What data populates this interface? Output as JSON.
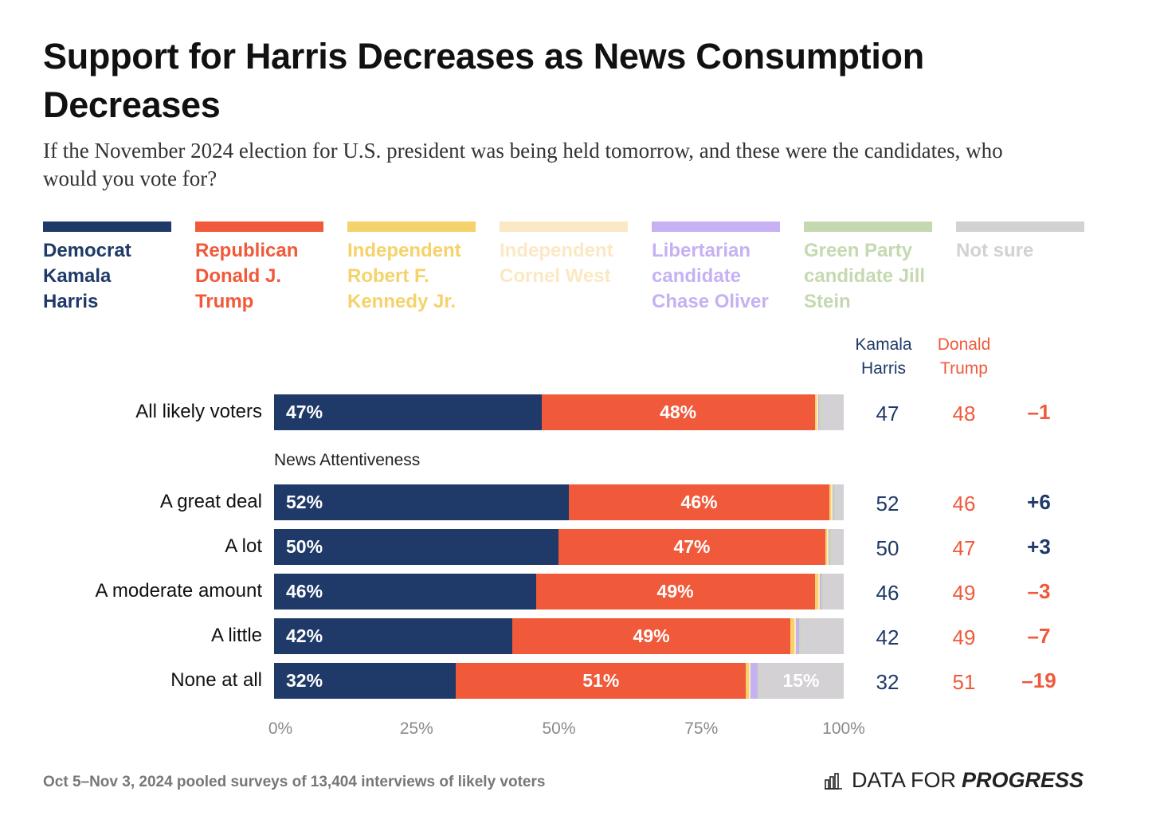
{
  "title": "Support for Harris Decreases as News Consumption Decreases",
  "subtitle": "If the November 2024 election for U.S. president was being held tomorrow, and these were the candidates, who would you vote for?",
  "legend": [
    {
      "label": "Democrat Kamala Harris",
      "color": "#1f3a68"
    },
    {
      "label": "Republican Donald J. Trump",
      "color": "#f0593a"
    },
    {
      "label": "Independent Robert F. Kennedy Jr.",
      "color": "#f5d26b"
    },
    {
      "label": "Independent Cornel West",
      "color": "#fbe8c4"
    },
    {
      "label": "Libertarian candidate Chase Oliver",
      "color": "#c6b1f2"
    },
    {
      "label": "Green Party candidate Jill Stein",
      "color": "#c5d9b1"
    },
    {
      "label": "Not sure",
      "color": "#d3d1d3"
    }
  ],
  "columns": {
    "harris": "Kamala Harris",
    "trump": "Donald Trump"
  },
  "section_label": "News Attentiveness",
  "footer": "Oct 5–Nov 3, 2024 pooled surveys of 13,404 interviews of likely voters",
  "brand": {
    "part1": "DATA FOR",
    "part2": "PROGRESS",
    "icon": "bar-chart-icon"
  },
  "chart_data": {
    "type": "bar",
    "orientation": "horizontal",
    "stacked": true,
    "categories": [
      "All likely voters",
      "A great deal",
      "A lot",
      "A moderate amount",
      "A little",
      "None at all"
    ],
    "series": [
      {
        "name": "Democrat Kamala Harris",
        "values": [
          47,
          52,
          50,
          46,
          42,
          32
        ]
      },
      {
        "name": "Republican Donald J. Trump",
        "values": [
          48,
          46,
          47,
          49,
          49,
          51
        ]
      },
      {
        "name": "Independent Robert F. Kennedy Jr.",
        "values": [
          0.4,
          0.3,
          0.3,
          0.6,
          0.7,
          0.5
        ]
      },
      {
        "name": "Independent Cornel West",
        "values": [
          0.2,
          0.2,
          0.2,
          0.3,
          0.3,
          0.3
        ]
      },
      {
        "name": "Libertarian candidate Chase Oliver",
        "values": [
          0.2,
          0.2,
          0.2,
          0.3,
          0.5,
          1.2
        ]
      },
      {
        "name": "Green Party candidate Jill Stein",
        "values": [
          0.3,
          0.2,
          0.3,
          0.3,
          0.3,
          0.2
        ]
      },
      {
        "name": "Not sure",
        "values": [
          4.0,
          1.6,
          2.2,
          3.6,
          7.6,
          15.0
        ]
      }
    ],
    "bar_labels": [
      [
        "47%",
        "48%",
        ""
      ],
      [
        "52%",
        "46%",
        ""
      ],
      [
        "50%",
        "47%",
        ""
      ],
      [
        "46%",
        "49%",
        ""
      ],
      [
        "42%",
        "49%",
        ""
      ],
      [
        "32%",
        "51%",
        "15%"
      ]
    ],
    "harris": [
      "47",
      "52",
      "50",
      "46",
      "42",
      "32"
    ],
    "trump": [
      "48",
      "46",
      "47",
      "49",
      "49",
      "51"
    ],
    "margin": [
      "–1",
      "+6",
      "+3",
      "–3",
      "–7",
      "–19"
    ],
    "xticks": [
      "0%",
      "25%",
      "50%",
      "75%",
      "100%"
    ],
    "xlim": [
      0,
      100
    ]
  }
}
